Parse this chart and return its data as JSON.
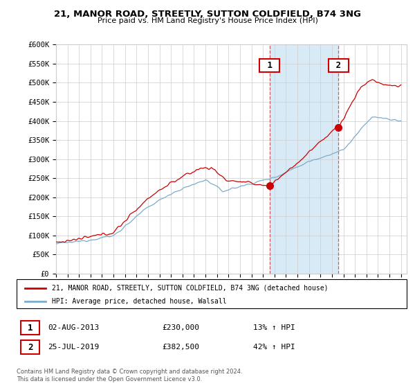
{
  "title": "21, MANOR ROAD, STREETLY, SUTTON COLDFIELD, B74 3NG",
  "subtitle": "Price paid vs. HM Land Registry's House Price Index (HPI)",
  "ylabel_ticks": [
    "£0",
    "£50K",
    "£100K",
    "£150K",
    "£200K",
    "£250K",
    "£300K",
    "£350K",
    "£400K",
    "£450K",
    "£500K",
    "£550K",
    "£600K"
  ],
  "ylim": [
    0,
    600000
  ],
  "xlim_start": 1995.0,
  "xlim_end": 2025.5,
  "sale1_date": 2013.58,
  "sale1_price": 230000,
  "sale1_label": "1",
  "sale1_text": "02-AUG-2013",
  "sale1_price_text": "£230,000",
  "sale1_hpi_text": "13% ↑ HPI",
  "sale2_date": 2019.56,
  "sale2_price": 382500,
  "sale2_label": "2",
  "sale2_text": "25-JUL-2019",
  "sale2_price_text": "£382,500",
  "sale2_hpi_text": "42% ↑ HPI",
  "legend_line1": "21, MANOR ROAD, STREETLY, SUTTON COLDFIELD, B74 3NG (detached house)",
  "legend_line2": "HPI: Average price, detached house, Walsall",
  "footer": "Contains HM Land Registry data © Crown copyright and database right 2024.\nThis data is licensed under the Open Government Licence v3.0.",
  "line_color_red": "#cc0000",
  "line_color_blue": "#7aadcc",
  "shade_color": "#d8eaf5",
  "bg_color": "#ffffff",
  "grid_color": "#cccccc"
}
